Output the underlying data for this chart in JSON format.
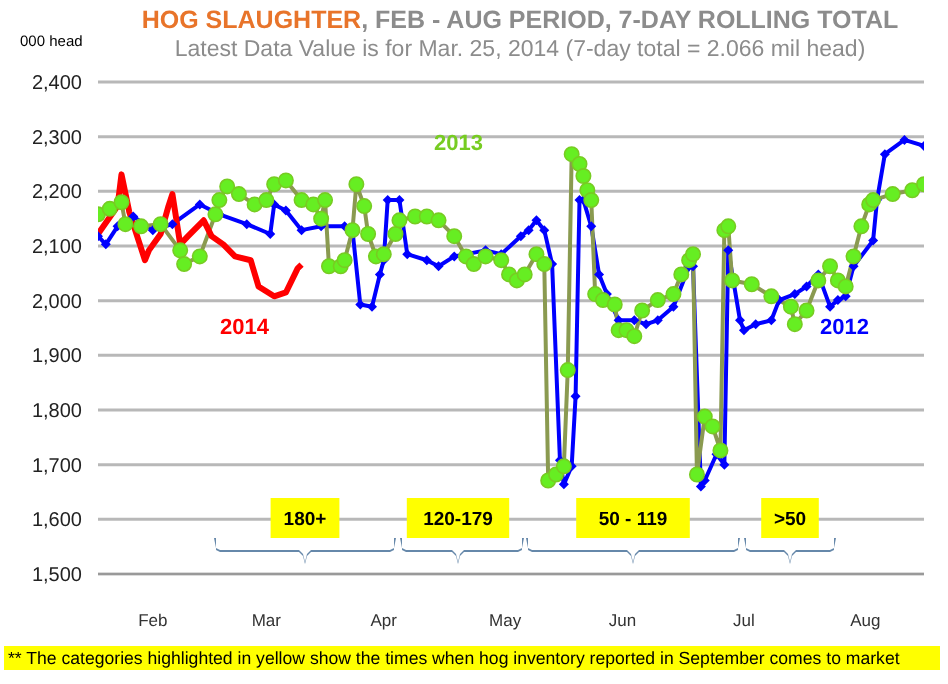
{
  "chart_data": {
    "type": "line",
    "title": "HOG SLAUGHTER, FEB - AUG PERIOD, 7-DAY ROLLING TOTAL",
    "subtitle": "Latest Data Value is for Mar. 25, 2014 (7-day total = 2.066 mil head)",
    "ylabel": "000 head",
    "annotations": [
      "** The categories highlighted in yellow show the times when hog inventory reported in September comes to market",
      "180+",
      "120-179",
      "50 - 119",
      ">50"
    ],
    "xlim": [
      "--02-01",
      "--08-31"
    ],
    "xticks": [
      {
        "value": "--02-15",
        "label": "Feb"
      },
      {
        "value": "--03-16",
        "label": "Mar"
      },
      {
        "value": "--04-15",
        "label": "Apr"
      },
      {
        "value": "--05-16",
        "label": "May"
      },
      {
        "value": "--06-15",
        "label": "Jun"
      },
      {
        "value": "--07-16",
        "label": "Jul"
      },
      {
        "value": "--08-16",
        "label": "Aug"
      }
    ],
    "ylim": [
      1500,
      2400
    ],
    "yticks": [
      {
        "value": 1500,
        "label": "1,500"
      },
      {
        "value": 1600,
        "label": "1,600"
      },
      {
        "value": 1700,
        "label": "1,700"
      },
      {
        "value": 1800,
        "label": "1,800"
      },
      {
        "value": 1900,
        "label": "1,900"
      },
      {
        "value": 2000,
        "label": "2,000"
      },
      {
        "value": 2100,
        "label": "2,100"
      },
      {
        "value": 2200,
        "label": "2,200"
      },
      {
        "value": 2300,
        "label": "2,300"
      },
      {
        "value": 2400,
        "label": "2,400"
      }
    ],
    "grid": "y",
    "legend": false,
    "series": [
      {
        "name": "2012",
        "color": "#0000ff",
        "marker": "diamond",
        "x": [
          "--02-01",
          "--02-03",
          "--02-06",
          "--02-10",
          "--02-15",
          "--02-20",
          "--02-27",
          "--03-04",
          "--03-11",
          "--03-17",
          "--03-18",
          "--03-21",
          "--03-25",
          "--03-30",
          "--04-05",
          "--04-07",
          "--04-09",
          "--04-12",
          "--04-14",
          "--04-15",
          "--04-16",
          "--04-19",
          "--04-21",
          "--04-26",
          "--04-29",
          "--05-03",
          "--05-06",
          "--05-11",
          "--05-15",
          "--05-20",
          "--05-22",
          "--05-24",
          "--05-26",
          "--05-28",
          "--05-30",
          "--05-31",
          "--06-02",
          "--06-03",
          "--06-04",
          "--06-05",
          "--06-07",
          "--06-09",
          "--06-11",
          "--06-14",
          "--06-18",
          "--06-21",
          "--06-24",
          "--06-28",
          "--07-02",
          "--07-03",
          "--07-05",
          "--07-06",
          "--07-09",
          "--07-11",
          "--07-12",
          "--07-15",
          "--07-16",
          "--07-19",
          "--07-23",
          "--07-25",
          "--07-29",
          "--08-01",
          "--08-04",
          "--08-07",
          "--08-09",
          "--08-11",
          "--08-13",
          "--08-18",
          "--08-19",
          "--08-21",
          "--08-26",
          "--08-31"
        ],
        "values": [
          2118,
          2103,
          2136,
          2154,
          2129,
          2140,
          2176,
          2158,
          2140,
          2122,
          2176,
          2165,
          2129,
          2136,
          2136,
          2129,
          1993,
          1989,
          2048,
          2074,
          2184,
          2184,
          2085,
          2074,
          2063,
          2081,
          2085,
          2092,
          2085,
          2118,
          2129,
          2147,
          2129,
          2067,
          1708,
          1664,
          1697,
          1825,
          2184,
          2184,
          2136,
          2048,
          2012,
          1964,
          1964,
          1957,
          1964,
          1989,
          2063,
          2063,
          1660,
          1671,
          1719,
          1700,
          2092,
          1964,
          1946,
          1957,
          1964,
          2001,
          2012,
          2026,
          2048,
          1989,
          2001,
          2008,
          2063,
          2110,
          2184,
          2268,
          2294,
          2283
        ]
      },
      {
        "name": "2013",
        "color": "#77cc22",
        "marker": "circle",
        "x": [
          "--02-01",
          "--02-04",
          "--02-07",
          "--02-08",
          "--02-12",
          "--02-17",
          "--02-22",
          "--02-23",
          "--02-27",
          "--03-03",
          "--03-04",
          "--03-06",
          "--03-09",
          "--03-13",
          "--03-16",
          "--03-18",
          "--03-21",
          "--03-25",
          "--03-28",
          "--03-30",
          "--03-31",
          "--04-01",
          "--04-04",
          "--04-05",
          "--04-07",
          "--04-08",
          "--04-10",
          "--04-11",
          "--04-13",
          "--04-15",
          "--04-18",
          "--04-19",
          "--04-23",
          "--04-26",
          "--04-29",
          "--05-03",
          "--05-06",
          "--05-08",
          "--05-11",
          "--05-15",
          "--05-17",
          "--05-19",
          "--05-21",
          "--05-24",
          "--05-26",
          "--05-27",
          "--05-29",
          "--05-31",
          "--06-01",
          "--06-02",
          "--06-04",
          "--06-05",
          "--06-06",
          "--06-07",
          "--06-08",
          "--06-10",
          "--06-13",
          "--06-14",
          "--06-16",
          "--06-18",
          "--06-20",
          "--06-24",
          "--06-28",
          "--06-30",
          "--07-02",
          "--07-03",
          "--07-04",
          "--07-06",
          "--07-08",
          "--07-10",
          "--07-11",
          "--07-12",
          "--07-13",
          "--07-18",
          "--07-23",
          "--07-28",
          "--07-29",
          "--08-01",
          "--08-04",
          "--08-07",
          "--08-09",
          "--08-11",
          "--08-13",
          "--08-15",
          "--08-17",
          "--08-18",
          "--08-23",
          "--08-28",
          "--08-31"
        ],
        "values": [
          2158,
          2168,
          2180,
          2140,
          2136,
          2140,
          2092,
          2067,
          2081,
          2158,
          2184,
          2209,
          2195,
          2176,
          2184,
          2213,
          2220,
          2184,
          2176,
          2150,
          2184,
          2063,
          2063,
          2074,
          2129,
          2213,
          2173,
          2122,
          2081,
          2085,
          2122,
          2147,
          2154,
          2154,
          2147,
          2118,
          2081,
          2067,
          2081,
          2074,
          2048,
          2037,
          2048,
          2085,
          2067,
          1671,
          1682,
          1697,
          1873,
          2268,
          2250,
          2228,
          2202,
          2184,
          2012,
          2001,
          1993,
          1946,
          1946,
          1935,
          1982,
          2001,
          2012,
          2048,
          2074,
          2085,
          1682,
          1788,
          1770,
          1726,
          2129,
          2136,
          2037,
          2030,
          2008,
          1989,
          1957,
          1982,
          2037,
          2063,
          2037,
          2026,
          2081,
          2136,
          2176,
          2184,
          2195,
          2202,
          2213
        ]
      },
      {
        "name": "2014",
        "color": "#ff0000",
        "marker": "none",
        "x": [
          "--02-01",
          "--02-06",
          "--02-07",
          "--02-09",
          "--02-13",
          "--02-14",
          "--02-17",
          "--02-19",
          "--02-20",
          "--02-22",
          "--02-24",
          "--02-28",
          "--03-02",
          "--03-05",
          "--03-08",
          "--03-12",
          "--03-14",
          "--03-18",
          "--03-21",
          "--03-24",
          "--03-25"
        ],
        "values": [
          2122,
          2173,
          2231,
          2162,
          2074,
          2092,
          2122,
          2173,
          2195,
          2103,
          2118,
          2147,
          2118,
          2103,
          2081,
          2074,
          2026,
          2008,
          2015,
          2059,
          2066
        ]
      }
    ]
  }
}
